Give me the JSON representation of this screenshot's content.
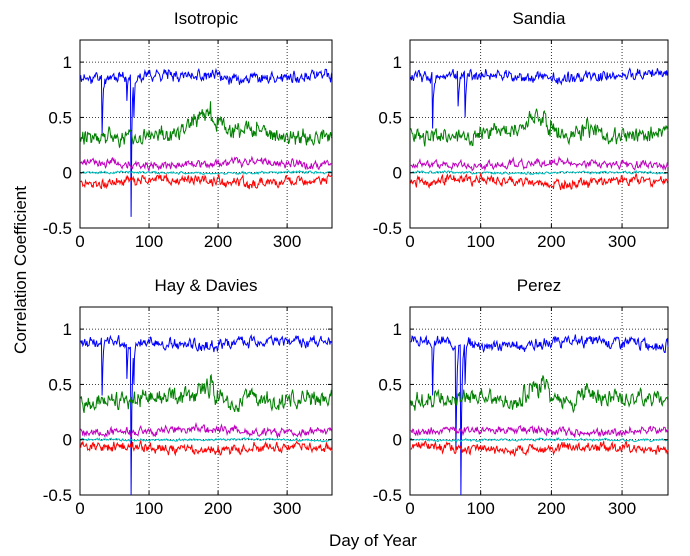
{
  "figure": {
    "ylabel": "Correlation Coefficient",
    "xlabel": "Day of Year"
  },
  "chart_data": [
    {
      "type": "line",
      "title": "Isotropic",
      "xlim": [
        0,
        365
      ],
      "ylim": [
        -0.5,
        1.2
      ],
      "xticks": [
        0,
        100,
        200,
        300
      ],
      "yticks": [
        -0.5,
        0,
        0.5,
        1
      ],
      "grid": true,
      "series": [
        {
          "color": "#0000ff",
          "base": 0.87,
          "noise": 0.07,
          "dips": [
            [
              32,
              0.35
            ],
            [
              68,
              0.65
            ],
            [
              74,
              -0.4
            ],
            [
              78,
              0.5
            ]
          ],
          "seed": 11
        },
        {
          "color": "#007f00",
          "base": 0.35,
          "noise": 0.1,
          "bumps": [
            [
              190,
              0.25
            ],
            [
              170,
              0.2
            ],
            [
              250,
              0.15
            ]
          ],
          "seed": 22
        },
        {
          "color": "#bf00bf",
          "base": 0.08,
          "noise": 0.05,
          "seed": 33
        },
        {
          "color": "#00bfbf",
          "base": 0.0,
          "noise": 0.015,
          "seed": 44
        },
        {
          "color": "#ff0000",
          "base": -0.08,
          "noise": 0.06,
          "seed": 55
        }
      ]
    },
    {
      "type": "line",
      "title": "Sandia",
      "xlim": [
        0,
        365
      ],
      "ylim": [
        -0.5,
        1.2
      ],
      "xticks": [
        0,
        100,
        200,
        300
      ],
      "yticks": [
        -0.5,
        0,
        0.5,
        1
      ],
      "grid": true,
      "series": [
        {
          "color": "#0000ff",
          "base": 0.87,
          "noise": 0.07,
          "dips": [
            [
              32,
              0.4
            ],
            [
              68,
              0.6
            ],
            [
              78,
              0.5
            ]
          ],
          "seed": 12
        },
        {
          "color": "#007f00",
          "base": 0.35,
          "noise": 0.1,
          "bumps": [
            [
              190,
              0.25
            ],
            [
              170,
              0.2
            ],
            [
              250,
              0.15
            ]
          ],
          "seed": 23
        },
        {
          "color": "#bf00bf",
          "base": 0.08,
          "noise": 0.05,
          "seed": 34
        },
        {
          "color": "#00bfbf",
          "base": 0.0,
          "noise": 0.015,
          "seed": 45
        },
        {
          "color": "#ff0000",
          "base": -0.08,
          "noise": 0.06,
          "seed": 56
        }
      ]
    },
    {
      "type": "line",
      "title": "Hay & Davies",
      "xlim": [
        0,
        365
      ],
      "ylim": [
        -0.5,
        1.2
      ],
      "xticks": [
        0,
        100,
        200,
        300
      ],
      "yticks": [
        -0.5,
        0,
        0.5,
        1
      ],
      "grid": true,
      "series": [
        {
          "color": "#0000ff",
          "base": 0.87,
          "noise": 0.07,
          "dips": [
            [
              32,
              0.4
            ],
            [
              68,
              0.55
            ],
            [
              74,
              -0.5
            ],
            [
              78,
              0.5
            ]
          ],
          "seed": 13
        },
        {
          "color": "#007f00",
          "base": 0.35,
          "noise": 0.1,
          "bumps": [
            [
              190,
              0.25
            ],
            [
              170,
              0.2
            ],
            [
              250,
              0.15
            ]
          ],
          "seed": 24
        },
        {
          "color": "#bf00bf",
          "base": 0.08,
          "noise": 0.05,
          "seed": 35
        },
        {
          "color": "#00bfbf",
          "base": 0.0,
          "noise": 0.015,
          "seed": 46
        },
        {
          "color": "#ff0000",
          "base": -0.08,
          "noise": 0.06,
          "seed": 57
        }
      ]
    },
    {
      "type": "line",
      "title": "Perez",
      "xlim": [
        0,
        365
      ],
      "ylim": [
        -0.5,
        1.2
      ],
      "xticks": [
        0,
        100,
        200,
        300
      ],
      "yticks": [
        -0.5,
        0,
        0.5,
        1
      ],
      "grid": true,
      "series": [
        {
          "color": "#0000ff",
          "base": 0.87,
          "noise": 0.07,
          "dips": [
            [
              32,
              0.4
            ],
            [
              65,
              -0.1
            ],
            [
              72,
              -0.5
            ],
            [
              78,
              0.5
            ]
          ],
          "seed": 14
        },
        {
          "color": "#007f00",
          "base": 0.35,
          "noise": 0.1,
          "bumps": [
            [
              190,
              0.25
            ],
            [
              170,
              0.2
            ],
            [
              250,
              0.15
            ]
          ],
          "seed": 25
        },
        {
          "color": "#bf00bf",
          "base": 0.08,
          "noise": 0.05,
          "seed": 36
        },
        {
          "color": "#00bfbf",
          "base": 0.0,
          "noise": 0.015,
          "seed": 47
        },
        {
          "color": "#ff0000",
          "base": -0.08,
          "noise": 0.06,
          "seed": 58
        }
      ]
    }
  ]
}
